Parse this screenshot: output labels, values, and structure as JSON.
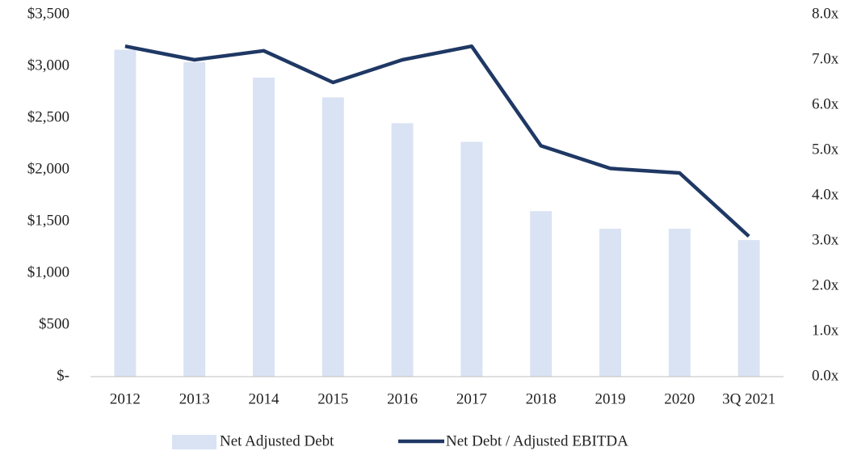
{
  "chart_data": {
    "type": "bar_line",
    "categories": [
      "2012",
      "2013",
      "2014",
      "2015",
      "2016",
      "2017",
      "2018",
      "2019",
      "2020",
      "3Q 2021"
    ],
    "series": [
      {
        "name": "Net Adjusted Debt",
        "type": "bar",
        "color": "#dae3f3",
        "values": [
          3160,
          3040,
          2890,
          2700,
          2450,
          2270,
          1600,
          1430,
          1430,
          1320
        ]
      },
      {
        "name": "Net Debt / Adjusted EBITDA",
        "type": "line",
        "axis": "y2",
        "color": "#1f3864",
        "values": [
          7.3,
          7.0,
          7.2,
          6.5,
          7.0,
          7.3,
          5.1,
          4.6,
          4.5,
          3.1
        ]
      }
    ],
    "ylim": [
      0,
      3500
    ],
    "yticks": [
      {
        "value": 0,
        "label": "$-"
      },
      {
        "value": 500,
        "label": "$500"
      },
      {
        "value": 1000,
        "label": "$1,000"
      },
      {
        "value": 1500,
        "label": "$1,500"
      },
      {
        "value": 2000,
        "label": "$2,000"
      },
      {
        "value": 2500,
        "label": "$2,500"
      },
      {
        "value": 3000,
        "label": "$3,000"
      },
      {
        "value": 3500,
        "label": "$3,500"
      }
    ],
    "y2lim": [
      0,
      8
    ],
    "y2ticks": [
      {
        "value": 0,
        "label": "0.0x"
      },
      {
        "value": 1,
        "label": "1.0x"
      },
      {
        "value": 2,
        "label": "2.0x"
      },
      {
        "value": 3,
        "label": "3.0x"
      },
      {
        "value": 4,
        "label": "4.0x"
      },
      {
        "value": 5,
        "label": "5.0x"
      },
      {
        "value": 6,
        "label": "6.0x"
      },
      {
        "value": 7,
        "label": "7.0x"
      },
      {
        "value": 8,
        "label": "8.0x"
      }
    ],
    "legend": "bottom"
  }
}
